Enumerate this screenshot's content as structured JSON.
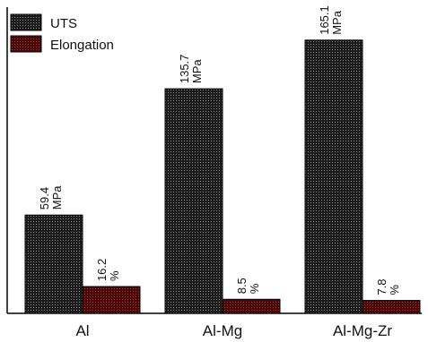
{
  "chart_data": {
    "type": "bar",
    "categories": [
      "Al",
      "Al-Mg",
      "Al-Mg-Zr"
    ],
    "series": [
      {
        "name": "UTS",
        "values": [
          59.4,
          135.7,
          165.1
        ],
        "labels": [
          "59.4",
          "135.7",
          "165.1"
        ],
        "unit": "MPa",
        "color": "#262626"
      },
      {
        "name": "Elongation",
        "values": [
          16.2,
          8.5,
          7.8
        ],
        "labels": [
          "16.2",
          "8.5",
          "7.8"
        ],
        "unit": "%",
        "color": "#5c0d0d"
      }
    ],
    "ylim": [
      0,
      185
    ],
    "legend_position": "top-left",
    "grid": false,
    "title": "",
    "xlabel": "",
    "ylabel": ""
  }
}
